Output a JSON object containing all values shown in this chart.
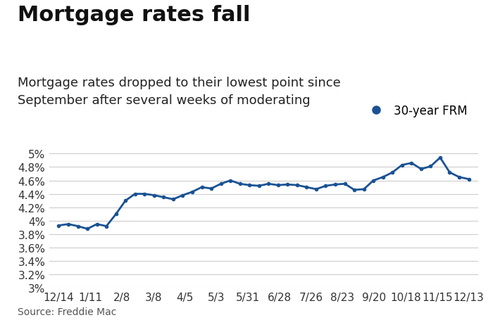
{
  "title": "Mortgage rates fall",
  "subtitle": "Mortgage rates dropped to their lowest point since\nSeptember after several weeks of moderating",
  "legend_label": "30-year FRM",
  "source": "Source: Freddie Mac",
  "x_labels": [
    "12/14",
    "1/11",
    "2/8",
    "3/8",
    "4/5",
    "5/3",
    "5/31",
    "6/28",
    "7/26",
    "8/23",
    "9/20",
    "10/18",
    "11/15",
    "12/13"
  ],
  "y_data": [
    3.93,
    3.95,
    3.92,
    3.88,
    3.95,
    3.92,
    4.1,
    4.3,
    4.4,
    4.4,
    4.38,
    4.35,
    4.32,
    4.38,
    4.43,
    4.5,
    4.48,
    4.55,
    4.6,
    4.55,
    4.53,
    4.52,
    4.55,
    4.53,
    4.54,
    4.53,
    4.5,
    4.47,
    4.52,
    4.54,
    4.55,
    4.46,
    4.47,
    4.6,
    4.65,
    4.72,
    4.83,
    4.86,
    4.77,
    4.81,
    4.94,
    4.72,
    4.65,
    4.62
  ],
  "line_color": "#1a5294",
  "line_width": 2.0,
  "marker": "o",
  "marker_size": 3.0,
  "background_color": "#ffffff",
  "grid_color": "#cccccc",
  "title_fontsize": 22,
  "subtitle_fontsize": 13,
  "tick_fontsize": 11,
  "source_fontsize": 10,
  "ylim": [
    3.0,
    5.1
  ],
  "ytick_vals": [
    3.0,
    3.2,
    3.4,
    3.6,
    3.8,
    4.0,
    4.2,
    4.4,
    4.6,
    4.8,
    5.0
  ],
  "ytick_labels": [
    "3%",
    "3.2%",
    "3.4%",
    "3.6%",
    "3.8%",
    "4%",
    "4.2%",
    "4.4%",
    "4.6%",
    "4.8%",
    "5%"
  ]
}
